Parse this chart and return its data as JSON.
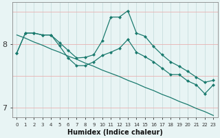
{
  "xlabel": "Humidex (Indice chaleur)",
  "bg_color": "#e8f4f4",
  "line_color": "#1a7a6e",
  "x": [
    0,
    1,
    2,
    3,
    4,
    5,
    6,
    7,
    8,
    9,
    10,
    11,
    12,
    13,
    14,
    15,
    16,
    17,
    18,
    19,
    20,
    21,
    22,
    23
  ],
  "line1": [
    7.86,
    8.17,
    8.17,
    8.14,
    8.14,
    8.02,
    7.9,
    7.78,
    7.79,
    7.83,
    8.05,
    8.42,
    8.42,
    8.52,
    8.17,
    8.12,
    7.96,
    7.83,
    7.72,
    7.65,
    7.57,
    7.48,
    7.4,
    7.43
  ],
  "line2": [
    7.86,
    8.17,
    8.17,
    8.14,
    8.14,
    7.97,
    7.78,
    7.66,
    7.66,
    7.72,
    7.82,
    7.87,
    7.93,
    8.07,
    7.87,
    7.8,
    7.72,
    7.62,
    7.52,
    7.52,
    7.42,
    7.36,
    7.22,
    7.36
  ],
  "line3": [
    8.14,
    8.09,
    8.03,
    7.98,
    7.92,
    7.87,
    7.81,
    7.76,
    7.7,
    7.65,
    7.59,
    7.54,
    7.49,
    7.43,
    7.38,
    7.32,
    7.27,
    7.21,
    7.16,
    7.1,
    7.05,
    6.99,
    6.94,
    6.88
  ],
  "ylim": [
    6.85,
    8.65
  ],
  "yticks": [
    7.0,
    8.0
  ],
  "xlim": [
    -0.5,
    23.5
  ],
  "xticks": [
    0,
    1,
    2,
    3,
    4,
    5,
    6,
    7,
    8,
    9,
    10,
    11,
    12,
    13,
    14,
    15,
    16,
    17,
    18,
    19,
    20,
    21,
    22,
    23
  ],
  "vgrid_color": "#c8dede",
  "hgrid_color": "#e8b0b0"
}
